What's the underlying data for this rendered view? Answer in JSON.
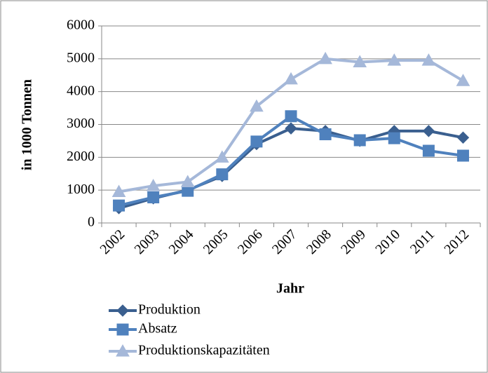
{
  "chart_data": {
    "type": "line",
    "categories": [
      "2002",
      "2003",
      "2004",
      "2005",
      "2006",
      "2007",
      "2008",
      "2009",
      "2010",
      "2011",
      "2012"
    ],
    "series": [
      {
        "name": "Produktion",
        "color": "#3a5f8f",
        "marker": "diamond",
        "values": [
          450,
          750,
          1000,
          1430,
          2400,
          2880,
          2800,
          2500,
          2800,
          2800,
          2600
        ]
      },
      {
        "name": "Absatz",
        "color": "#4f81bd",
        "marker": "square",
        "values": [
          530,
          780,
          980,
          1480,
          2480,
          3250,
          2700,
          2520,
          2580,
          2200,
          2050
        ]
      },
      {
        "name": "Produktionskapazitäten",
        "color": "#a5b8d9",
        "marker": "triangle",
        "values": [
          950,
          1130,
          1250,
          2000,
          3550,
          4380,
          5000,
          4900,
          4950,
          4950,
          4330
        ]
      }
    ],
    "ylim": [
      0,
      6000
    ],
    "yticks": [
      0,
      1000,
      2000,
      3000,
      4000,
      5000,
      6000
    ],
    "grid": true,
    "ylabel": "in 1000 Tonnen",
    "xlabel": "Jahr",
    "legend": "bottom"
  }
}
